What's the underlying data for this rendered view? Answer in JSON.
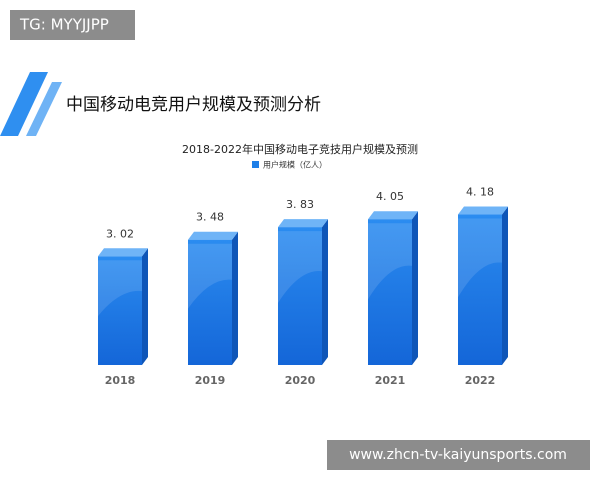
{
  "watermark_top": "TG: MYYJJPP",
  "heading": "中国移动电竞用户规模及预测分析",
  "chart_data": {
    "type": "bar",
    "title": "2018-2022年中国移动电子竞技用户规模及预测",
    "categories": [
      "2018",
      "2019",
      "2020",
      "2021",
      "2022"
    ],
    "series": [
      {
        "name": "用户规模（亿人）",
        "color": "#1e7fe8",
        "values": [
          3.02,
          3.48,
          3.83,
          4.05,
          4.18
        ],
        "value_labels": [
          "3. 02",
          "3. 48",
          "3. 83",
          "4. 05",
          "4. 18"
        ]
      }
    ]
  },
  "watermark_bottom": "www.zhcn-tv-kaiyunsports.com"
}
